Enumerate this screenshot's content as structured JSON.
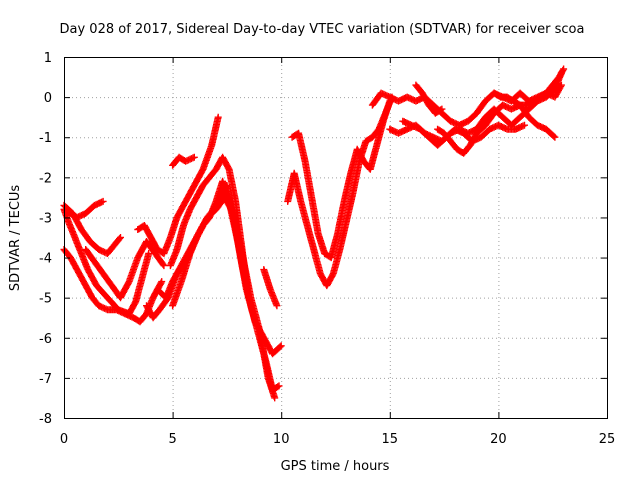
{
  "chart_data": {
    "type": "scatter",
    "title": "Day 028 of 2017, Sidereal Day-to-day VTEC variation (SDTVAR) for receiver scoa",
    "xlabel": "GPS time / hours",
    "ylabel": "SDTVAR / TECUs",
    "xlim": [
      0,
      25
    ],
    "ylim": [
      -8,
      1
    ],
    "xticks": [
      0,
      5,
      10,
      15,
      20,
      25
    ],
    "yticks": [
      1,
      0,
      -1,
      -2,
      -3,
      -4,
      -5,
      -6,
      -7,
      -8
    ],
    "grid": true,
    "legend": "none",
    "marker": "+",
    "color": "#ff0000",
    "series": [
      {
        "x": [
          0,
          0.3,
          0.6,
          1.0,
          1.4,
          1.8
        ],
        "y": [
          -2.8,
          -2.9,
          -3.0,
          -2.9,
          -2.7,
          -2.6
        ]
      },
      {
        "x": [
          0,
          0.2,
          0.5,
          0.8,
          1.1,
          1.5,
          2.0,
          2.5,
          3.0,
          3.3,
          3.6,
          3.9
        ],
        "y": [
          -2.8,
          -3.1,
          -3.5,
          -3.9,
          -4.3,
          -4.7,
          -5.0,
          -5.3,
          -5.4,
          -5.1,
          -4.5,
          -3.9
        ]
      },
      {
        "x": [
          0,
          0.3,
          0.7,
          1.0,
          1.3,
          1.6,
          2.0,
          2.4,
          2.8,
          3.2,
          3.5,
          3.8,
          4.1,
          4.5
        ],
        "y": [
          -3.8,
          -4.0,
          -4.4,
          -4.7,
          -5.0,
          -5.2,
          -5.3,
          -5.3,
          -5.4,
          -5.5,
          -5.6,
          -5.4,
          -5.0,
          -4.6
        ]
      },
      {
        "x": [
          0,
          0.4,
          0.8,
          1.2,
          1.6,
          2.0,
          2.3,
          2.6
        ],
        "y": [
          -2.7,
          -2.9,
          -3.3,
          -3.6,
          -3.8,
          -3.9,
          -3.7,
          -3.5
        ]
      },
      {
        "x": [
          1.0,
          1.4,
          1.8,
          2.2,
          2.6,
          3.0,
          3.4,
          3.8,
          4.2,
          4.6
        ],
        "y": [
          -3.8,
          -4.1,
          -4.4,
          -4.7,
          -5.0,
          -4.6,
          -4.0,
          -3.6,
          -3.9,
          -4.2
        ]
      },
      {
        "x": [
          3.4,
          3.7,
          4.0,
          4.3,
          4.6,
          4.9,
          5.2,
          5.6,
          6.0,
          6.4,
          6.8,
          7.1
        ],
        "y": [
          -3.3,
          -3.2,
          -3.5,
          -3.8,
          -3.9,
          -3.5,
          -3.0,
          -2.6,
          -2.2,
          -1.8,
          -1.2,
          -0.5
        ]
      },
      {
        "x": [
          3.8,
          4.1,
          4.4,
          4.8,
          5.2,
          5.5,
          5.8,
          6.1,
          6.4,
          6.7,
          7.0,
          7.3,
          7.6,
          8.0,
          8.4,
          8.8,
          9.2,
          9.6,
          10.0
        ],
        "y": [
          -5.2,
          -5.5,
          -5.3,
          -5.0,
          -4.4,
          -4.2,
          -3.9,
          -3.5,
          -3.2,
          -3.0,
          -2.6,
          -2.1,
          -2.6,
          -3.6,
          -4.8,
          -5.6,
          -6.0,
          -6.4,
          -6.2
        ]
      },
      {
        "x": [
          4.3,
          4.7,
          5.0,
          5.4,
          5.8,
          6.2,
          6.6,
          6.9,
          7.2,
          7.5,
          7.8,
          8.2,
          8.6,
          9.0,
          9.3,
          9.6,
          9.9
        ],
        "y": [
          -4.8,
          -5.0,
          -4.6,
          -4.2,
          -3.8,
          -3.4,
          -3.0,
          -2.8,
          -2.5,
          -2.2,
          -3.0,
          -4.2,
          -5.2,
          -6.0,
          -6.6,
          -7.3,
          -7.2
        ]
      },
      {
        "x": [
          4.9,
          5.2,
          5.5,
          5.8,
          6.1,
          6.4,
          6.7,
          7.0,
          7.3,
          7.6,
          7.9,
          8.2,
          8.5
        ],
        "y": [
          -4.2,
          -3.8,
          -3.2,
          -2.8,
          -2.5,
          -2.2,
          -2.0,
          -1.8,
          -1.5,
          -1.8,
          -2.6,
          -3.8,
          -5.0
        ]
      },
      {
        "x": [
          5.0,
          5.4,
          5.8,
          6.2,
          6.6,
          7.0,
          7.4,
          7.8,
          8.2,
          8.6,
          9.0,
          9.4,
          9.7
        ],
        "y": [
          -5.2,
          -4.6,
          -3.9,
          -3.4,
          -3.0,
          -2.8,
          -2.5,
          -2.9,
          -3.9,
          -5.0,
          -5.8,
          -7.0,
          -7.5
        ]
      },
      {
        "x": [
          5.0,
          5.3,
          5.6,
          6.0
        ],
        "y": [
          -1.7,
          -1.5,
          -1.6,
          -1.5
        ]
      },
      {
        "x": [
          9.2,
          9.5,
          9.8
        ],
        "y": [
          -4.3,
          -4.8,
          -5.2
        ]
      },
      {
        "x": [
          10.3,
          10.6,
          10.9,
          11.2,
          11.5,
          11.8,
          12.1,
          12.4,
          12.7,
          13.0,
          13.3,
          13.6,
          13.9,
          14.2,
          14.5,
          14.8,
          15.1
        ],
        "y": [
          -2.6,
          -1.9,
          -2.6,
          -3.2,
          -3.8,
          -4.4,
          -4.7,
          -4.4,
          -3.8,
          -3.1,
          -2.4,
          -1.6,
          -1.1,
          -1.0,
          -0.8,
          -0.4,
          0.0
        ]
      },
      {
        "x": [
          10.5,
          10.8,
          11.1,
          11.4,
          11.7,
          12.0,
          12.3,
          12.6,
          12.9,
          13.2,
          13.5,
          13.8,
          14.1,
          14.4,
          14.7,
          15.0
        ],
        "y": [
          -1.0,
          -0.9,
          -1.6,
          -2.5,
          -3.4,
          -3.9,
          -4.0,
          -3.4,
          -2.6,
          -1.9,
          -1.3,
          -1.6,
          -1.8,
          -1.2,
          -0.6,
          -0.1
        ]
      },
      {
        "x": [
          14.2,
          14.6,
          15.0,
          15.4,
          15.8,
          16.2,
          16.6,
          17.0,
          17.4,
          17.8,
          18.2,
          18.6,
          19.0,
          19.4,
          19.8,
          20.2,
          20.6,
          21.0,
          21.4,
          21.8,
          22.2,
          22.6,
          22.9
        ],
        "y": [
          -0.2,
          0.1,
          0.0,
          -0.1,
          0.0,
          -0.1,
          0.0,
          -0.2,
          -0.4,
          -0.6,
          -0.7,
          -0.6,
          -0.4,
          -0.1,
          0.1,
          0.0,
          -0.1,
          0.1,
          -0.1,
          0.0,
          0.1,
          0.0,
          0.3
        ]
      },
      {
        "x": [
          15.0,
          15.4,
          15.8,
          16.2,
          16.6,
          17.0,
          17.4,
          17.8,
          18.2,
          18.6,
          19.0,
          19.4,
          19.8,
          20.2,
          20.6,
          21.0,
          21.4,
          21.8,
          22.2,
          22.6,
          22.9
        ],
        "y": [
          -0.8,
          -0.9,
          -0.8,
          -0.7,
          -0.9,
          -1.0,
          -1.1,
          -0.9,
          -0.8,
          -0.9,
          -0.8,
          -0.5,
          -0.3,
          -0.5,
          -0.7,
          -0.5,
          -0.3,
          -0.1,
          0.0,
          0.2,
          0.6
        ]
      },
      {
        "x": [
          15.6,
          16.0,
          16.4,
          16.8,
          17.2,
          17.6,
          18.0,
          18.4,
          18.8,
          19.2,
          19.6,
          20.0,
          20.4,
          20.8,
          21.2
        ],
        "y": [
          -0.6,
          -0.7,
          -0.8,
          -1.0,
          -1.2,
          -1.0,
          -0.8,
          -0.9,
          -1.1,
          -1.0,
          -0.8,
          -0.7,
          -0.8,
          -0.8,
          -0.7
        ]
      },
      {
        "x": [
          16.2,
          16.5,
          16.8,
          17.1,
          17.4
        ],
        "y": [
          0.3,
          0.1,
          -0.2,
          -0.4,
          -0.3
        ]
      },
      {
        "x": [
          17.2,
          17.5,
          17.8,
          18.1,
          18.4,
          18.7,
          19.0,
          19.4,
          19.8,
          20.2,
          20.6,
          21.0,
          21.4,
          21.8,
          22.2,
          22.6
        ],
        "y": [
          -0.8,
          -0.9,
          -1.1,
          -1.3,
          -1.4,
          -1.2,
          -0.9,
          -0.7,
          -0.4,
          -0.2,
          -0.3,
          -0.2,
          -0.5,
          -0.7,
          -0.8,
          -1.0
        ]
      },
      {
        "x": [
          19.8,
          20.1,
          20.4,
          20.7,
          21.0,
          21.3,
          21.6,
          21.9,
          22.2,
          22.5,
          22.8,
          23.0
        ],
        "y": [
          0.1,
          0.0,
          0.0,
          -0.1,
          -0.2,
          -0.2,
          -0.1,
          0.0,
          0.1,
          0.3,
          0.5,
          0.7
        ]
      }
    ]
  }
}
